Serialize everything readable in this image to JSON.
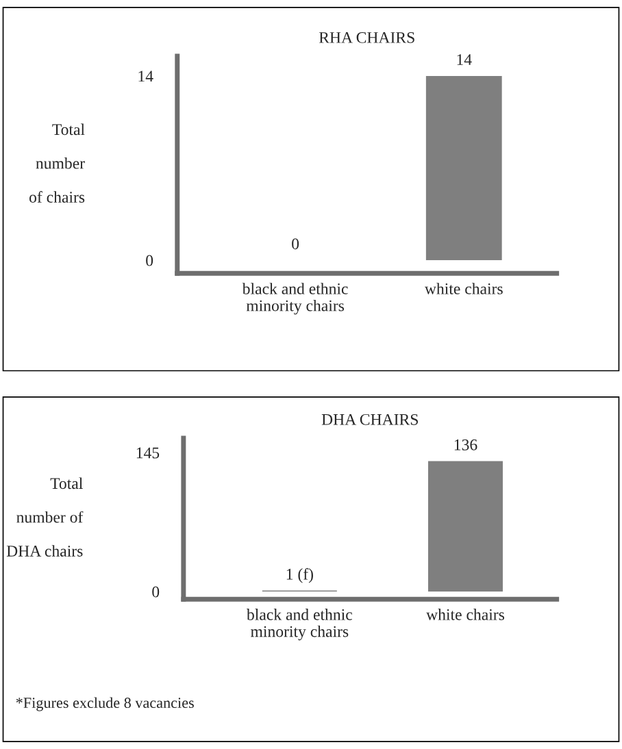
{
  "chart_data": [
    {
      "type": "bar",
      "title": "RHA CHAIRS",
      "ylabel": "Total\n\nnumber\n\nof chairs",
      "categories": [
        "black and ethnic\nminority chairs",
        "white chairs"
      ],
      "values": [
        0,
        14
      ],
      "color": "#7f7f7f",
      "ylim": [
        -1,
        15.5
      ],
      "yticks": [
        0,
        14
      ],
      "data_labels": true,
      "grid": false
    },
    {
      "type": "bar",
      "title": "DHA CHAIRS",
      "ylabel": "Total\n\nnumber of\n\nDHA chairs",
      "categories": [
        "black and ethnic\nminority chairs",
        "white chairs"
      ],
      "values": [
        1,
        136
      ],
      "value_labels": [
        "1 (f)",
        "136"
      ],
      "color": "#7f7f7f",
      "ylim": [
        -8,
        160
      ],
      "yticks": [
        0,
        145
      ],
      "grid": false,
      "annotations": [
        "*Figures exclude 8 vacancies"
      ]
    }
  ]
}
